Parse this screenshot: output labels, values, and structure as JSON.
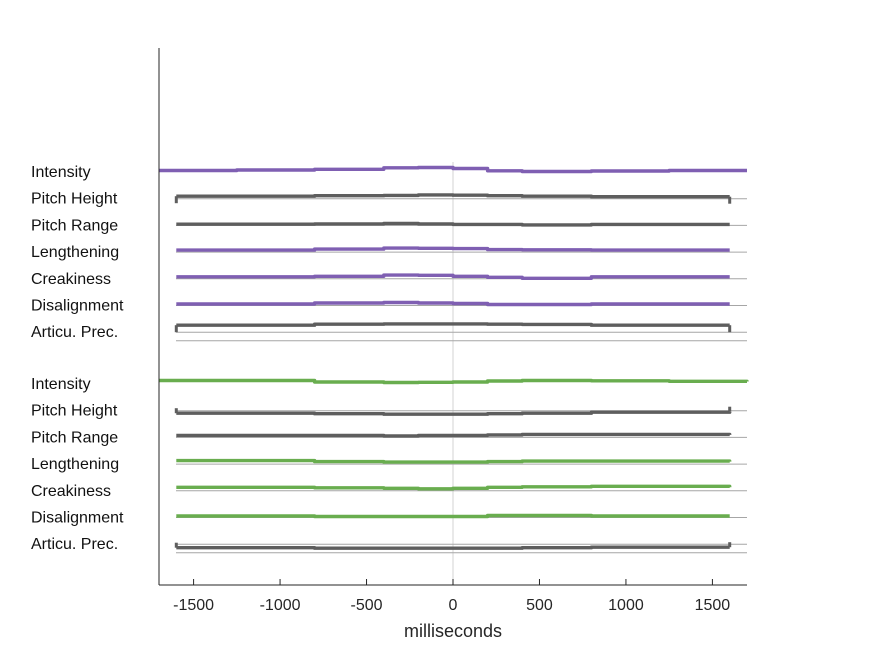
{
  "chart_data": {
    "type": "line",
    "xlabel": "milliseconds",
    "xlim": [
      -1700,
      1700
    ],
    "xticks": [
      -1500,
      -1000,
      -500,
      0,
      500,
      1000,
      1500
    ],
    "xtick_labels": [
      "-1500",
      "-1000",
      "-500",
      "0",
      "500",
      "1000",
      "1500"
    ],
    "grid": false,
    "colors": {
      "purple": "#7f5fb2",
      "green": "#69ad4f",
      "gray": "#5e5e5e",
      "baseline": "#a6a6a6",
      "zero_line": "#dadada",
      "axis": "#262626"
    },
    "panels": [
      {
        "name": "top",
        "color_key": "purple",
        "rows": [
          {
            "label": "Intensity",
            "color_key": "purple",
            "x": [
              -1700,
              -1250,
              -800,
              -400,
              -200,
              0,
              200,
              400,
              800,
              1250,
              1700
            ],
            "y": [
              0.6,
              0.8,
              1.1,
              1.7,
              1.8,
              1.4,
              0.5,
              0.2,
              0.4,
              0.6,
              0.6
            ],
            "end_ticks": false
          },
          {
            "label": "Pitch Height",
            "color_key": "gray",
            "x": [
              -1600,
              -800,
              -400,
              -200,
              0,
              200,
              400,
              800,
              1600
            ],
            "y": [
              1.0,
              1.2,
              1.3,
              1.5,
              1.4,
              1.2,
              1.0,
              0.8,
              0.8
            ],
            "end_ticks": true
          },
          {
            "label": "Pitch Range",
            "color_key": "gray",
            "x": [
              -1600,
              -800,
              -400,
              -200,
              0,
              200,
              400,
              800,
              1600
            ],
            "y": [
              0.5,
              0.6,
              0.8,
              0.6,
              0.4,
              0.4,
              0.2,
              0.4,
              0.4
            ],
            "end_ticks": false
          },
          {
            "label": "Lengthening",
            "color_key": "purple",
            "x": [
              -1600,
              -800,
              -400,
              -200,
              0,
              200,
              400,
              800,
              1600
            ],
            "y": [
              0.8,
              1.2,
              1.6,
              1.5,
              1.4,
              1.0,
              0.9,
              0.8,
              0.8
            ],
            "end_ticks": false
          },
          {
            "label": "Creakiness",
            "color_key": "purple",
            "x": [
              -1600,
              -800,
              -400,
              -200,
              0,
              200,
              400,
              800,
              1600
            ],
            "y": [
              0.8,
              1.0,
              1.5,
              1.4,
              1.0,
              0.6,
              0.2,
              0.8,
              0.8
            ],
            "end_ticks": false
          },
          {
            "label": "Disalignment",
            "color_key": "purple",
            "x": [
              -1600,
              -800,
              -400,
              -200,
              0,
              200,
              400,
              800,
              1600
            ],
            "y": [
              0.6,
              1.0,
              1.2,
              1.0,
              0.8,
              0.4,
              0.4,
              0.6,
              0.6
            ],
            "end_ticks": false
          },
          {
            "label": "Articu. Prec.",
            "color_key": "gray",
            "x": [
              -1600,
              -800,
              -400,
              -200,
              0,
              200,
              400,
              800,
              1600
            ],
            "y": [
              2.8,
              3.2,
              3.3,
              3.3,
              3.3,
              3.2,
              3.1,
              2.8,
              2.8
            ],
            "end_ticks": true
          }
        ]
      },
      {
        "name": "bottom",
        "color_key": "green",
        "rows": [
          {
            "label": "Intensity",
            "color_key": "green",
            "x": [
              -1700,
              -1250,
              -800,
              -400,
              -200,
              0,
              200,
              400,
              800,
              1250,
              1700
            ],
            "y": [
              1.4,
              1.4,
              0.8,
              0.6,
              0.7,
              0.8,
              1.2,
              1.4,
              1.3,
              1.1,
              1.0
            ],
            "end_ticks": false
          },
          {
            "label": "Pitch Height",
            "color_key": "gray",
            "x": [
              -1600,
              -800,
              -400,
              -200,
              0,
              200,
              400,
              800,
              1600
            ],
            "y": [
              -1.0,
              -1.2,
              -1.4,
              -1.4,
              -1.4,
              -1.2,
              -1.0,
              -0.6,
              -0.4
            ],
            "end_ticks": true
          },
          {
            "label": "Pitch Range",
            "color_key": "gray",
            "x": [
              -1600,
              -800,
              -400,
              -200,
              0,
              200,
              400,
              800,
              1600
            ],
            "y": [
              0.8,
              0.8,
              0.6,
              0.8,
              0.8,
              1.0,
              1.2,
              1.2,
              1.0
            ],
            "end_ticks": false
          },
          {
            "label": "Lengthening",
            "color_key": "green",
            "x": [
              -1600,
              -800,
              -400,
              -200,
              0,
              200,
              400,
              800,
              1600
            ],
            "y": [
              1.4,
              1.0,
              0.8,
              0.8,
              0.8,
              1.0,
              1.2,
              1.2,
              1.0
            ],
            "end_ticks": false
          },
          {
            "label": "Creakiness",
            "color_key": "green",
            "x": [
              -1600,
              -800,
              -400,
              -200,
              0,
              200,
              400,
              800,
              1600
            ],
            "y": [
              1.4,
              1.2,
              1.0,
              0.8,
              1.0,
              1.4,
              1.6,
              1.8,
              1.4
            ],
            "end_ticks": false
          },
          {
            "label": "Disalignment",
            "color_key": "green",
            "x": [
              -1600,
              -800,
              -400,
              -200,
              0,
              200,
              400,
              800,
              1600
            ],
            "y": [
              0.6,
              0.4,
              0.4,
              0.4,
              0.4,
              0.8,
              0.8,
              0.6,
              0.6
            ],
            "end_ticks": false
          },
          {
            "label": "Articu. Prec.",
            "color_key": "gray",
            "x": [
              -1600,
              -800,
              -400,
              -200,
              0,
              200,
              400,
              800,
              1600
            ],
            "y": [
              -1.4,
              -1.6,
              -1.6,
              -1.6,
              -1.6,
              -1.6,
              -1.4,
              -1.2,
              -1.2
            ],
            "end_ticks": true
          }
        ]
      }
    ]
  }
}
